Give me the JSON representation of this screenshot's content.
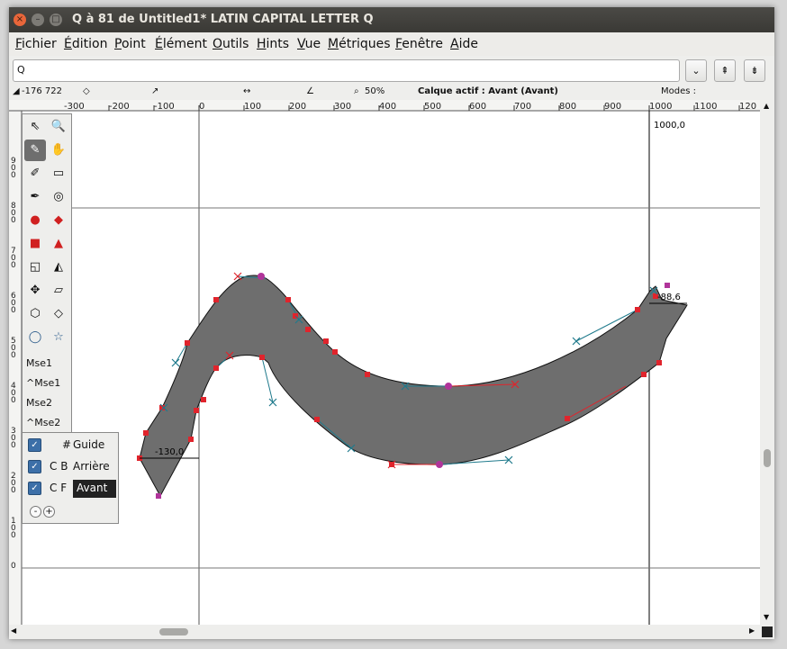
{
  "window": {
    "title": "Q à 81 de Untitled1* LATIN CAPITAL LETTER Q",
    "close_glyph": "×",
    "min_glyph": "–",
    "max_glyph": "□"
  },
  "menu": [
    "Fichier",
    "Édition",
    "Point",
    "Élément",
    "Outils",
    "Hints",
    "Vue",
    "Métriques",
    "Fenêtre",
    "Aide"
  ],
  "toolbar": {
    "glyph_field_value": "Q",
    "dropdown_glyph": "⌄",
    "prev_glyph": "⇞",
    "next_glyph": "⇟"
  },
  "status": {
    "coords": "-176 722",
    "zoom": "50%",
    "active_layer": "Calque actif : Avant (Avant)",
    "modes": "Modes :"
  },
  "ruler": {
    "h_ticks": [
      "-300",
      "-200",
      "-100",
      "0",
      "100",
      "200",
      "300",
      "400",
      "500",
      "600",
      "700",
      "800",
      "900",
      "1000",
      "1100",
      "120"
    ],
    "v_ticks": [
      "900",
      "800",
      "700",
      "600",
      "500",
      "400",
      "300",
      "200",
      "100",
      "0"
    ]
  },
  "canvas": {
    "advance_label": "1000,0",
    "left_measure": "-130,0",
    "right_measure": "-88,6"
  },
  "toolbox": {
    "mse": [
      "Mse1",
      "^Mse1",
      "Mse2",
      "^Mse2"
    ]
  },
  "layers": {
    "rows": [
      {
        "tag": "#",
        "name": "Guide"
      },
      {
        "tag": "C B",
        "name": "Arrière"
      },
      {
        "tag": "C F",
        "name": "Avant"
      }
    ],
    "check_glyph": "✓",
    "minus_glyph": "-",
    "plus_glyph": "+"
  },
  "colors": {
    "fill": "#6e6e6e",
    "oncurve": "#e0242c",
    "offcurve": "#1f7a8c",
    "extremum": "#b0349a"
  }
}
